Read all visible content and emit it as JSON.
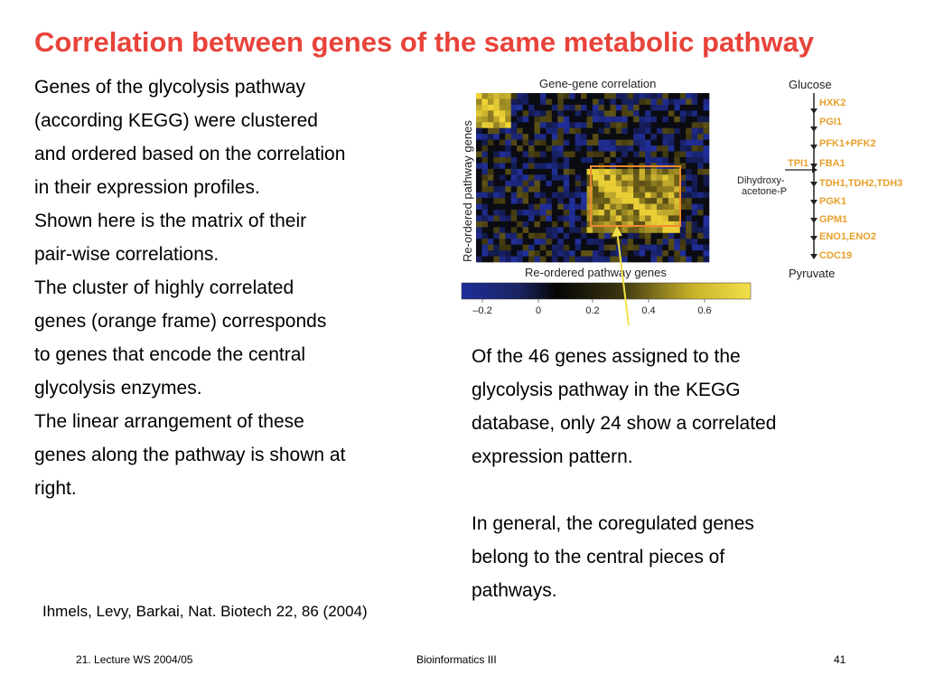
{
  "slide": {
    "title": "Correlation between genes of the same metabolic pathway",
    "left_lines": [
      "Genes of the glycolysis pathway",
      "(according KEGG) were clustered",
      "and ordered based on the correlation",
      "in their expression profiles.",
      "Shown here is the matrix of their",
      "pair-wise correlations.",
      "The cluster of highly correlated",
      "genes (orange frame) corresponds",
      "to genes that encode the central",
      "glycolysis enzymes.",
      "The linear arrangement of these",
      "genes along the pathway is shown at",
      "right."
    ],
    "right_para1": [
      "Of the 46 genes assigned to the",
      "glycolysis pathway in the KEGG",
      "database, only 24 show a correlated",
      "expression pattern."
    ],
    "right_para2": [
      "In general, the coregulated genes",
      "belong to the central pieces of",
      "pathways."
    ],
    "citation": "Ihmels, Levy, Barkai, Nat. Biotech 22, 86 (2004)"
  },
  "figure": {
    "matrix_title": "Gene-gene correlation",
    "y_label": "Re-ordered pathway genes",
    "x_label": "Re-ordered pathway genes",
    "colorbar_ticks": [
      "–0.2",
      "0",
      "0.2",
      "0.4",
      "0.6"
    ],
    "colors": {
      "negative": "#2a3a8f",
      "neutral": "#0a0a0a",
      "positive": "#e8d23a",
      "frame": "#f08a30",
      "gene_label": "#e8a02a",
      "arrow_line": "#f2e04a"
    },
    "pathway": {
      "start": "Glucose",
      "end": "Pyruvate",
      "steps": [
        "HXK2",
        "PGI1",
        "PFK1+PFK2",
        "FBA1",
        "TDH1,TDH2,TDH3",
        "PGK1",
        "GPM1",
        "ENO1,ENO2",
        "CDC19"
      ],
      "side_gene": "TPI1",
      "side_metabolite_line1": "Dihydroxy-",
      "side_metabolite_line2": "acetone-P"
    }
  },
  "footer": {
    "left": "21. Lecture WS 2004/05",
    "center": "Bioinformatics III",
    "right": "41"
  }
}
